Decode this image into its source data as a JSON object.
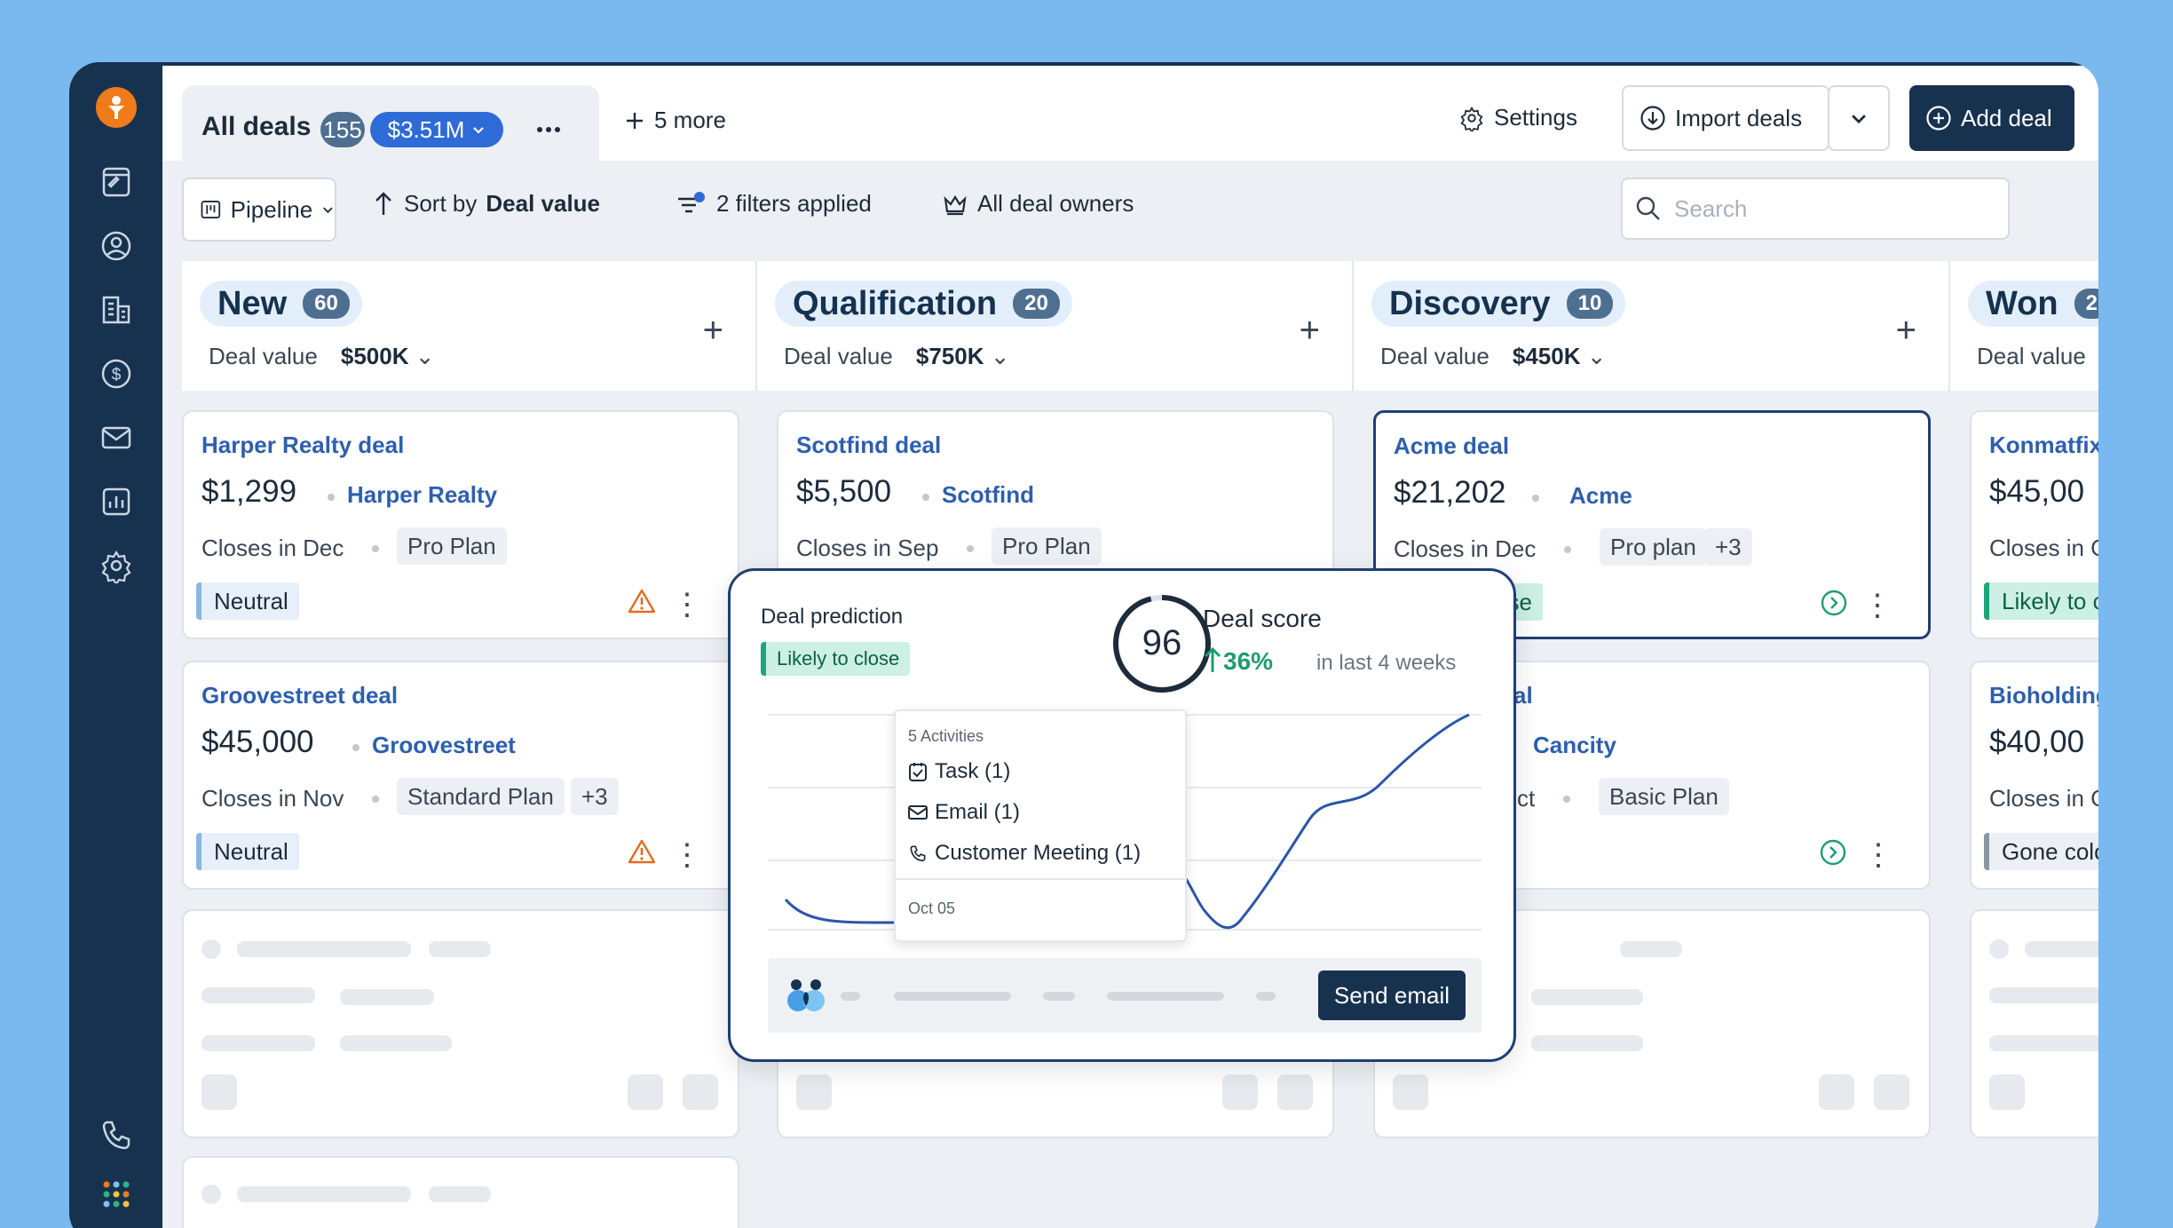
{
  "header": {
    "tab_title": "All deals",
    "count": "155",
    "value": "$3.51M",
    "more": "5 more",
    "settings": "Settings",
    "import": "Import deals",
    "add": "Add deal"
  },
  "toolbar": {
    "view": "Pipeline",
    "sort_prefix": "Sort by",
    "sort_field": "Deal value",
    "filters": "2 filters applied",
    "owners": "All deal owners",
    "search_placeholder": "Search"
  },
  "columns": [
    {
      "name": "New",
      "count": "60",
      "value_label": "Deal value",
      "value": "$500K"
    },
    {
      "name": "Qualification",
      "count": "20",
      "value_label": "Deal value",
      "value": "$750K"
    },
    {
      "name": "Discovery",
      "count": "10",
      "value_label": "Deal value",
      "value": "$450K"
    },
    {
      "name": "Won",
      "count": "2",
      "value_label": "Deal value",
      "value": ""
    }
  ],
  "cards": {
    "harper": {
      "name": "Harper Realty deal",
      "amount": "$1,299",
      "org": "Harper Realty",
      "close": "Closes in Dec",
      "plan": "Pro Plan",
      "status": "Neutral"
    },
    "groove": {
      "name": "Groovestreet deal",
      "amount": "$45,000",
      "org": "Groovestreet",
      "close": "Closes in Nov",
      "plan": "Standard Plan",
      "extra": "+3",
      "status": "Neutral"
    },
    "scot": {
      "name": "Scotfind deal",
      "amount": "$5,500",
      "org": "Scotfind",
      "close": "Closes in Sep",
      "plan": "Pro Plan"
    },
    "acme": {
      "name": "Acme deal",
      "amount": "$21,202",
      "org": "Acme",
      "close": "Closes in Dec",
      "plan": "Pro plan",
      "extra": "+3",
      "status": "ose"
    },
    "cancity": {
      "name": "al",
      "org": "Cancity",
      "close": "ct",
      "plan": "Basic Plan"
    },
    "konmatfix": {
      "name": "Konmatfix",
      "amount": "$45,00",
      "close": "Closes in C",
      "status": "Likely to c"
    },
    "bioholding": {
      "name": "Bioholding",
      "amount": "$40,00",
      "close": "Closes in C",
      "status": "Gone colo"
    }
  },
  "popup": {
    "prediction_label": "Deal prediction",
    "prediction": "Likely to close",
    "score": "96",
    "score_label": "Deal score",
    "change": "36%",
    "period": "in last 4 weeks",
    "tooltip": {
      "heading": "5 Activities",
      "task": "Task (1)",
      "email": "Email (1)",
      "meeting": "Customer Meeting (1)",
      "date": "Oct 05"
    },
    "send": "Send email"
  },
  "colors": {
    "brand": "#17324f",
    "accent": "#2e6bd6",
    "success": "#1e9b72",
    "warning": "#e36c1c",
    "background": "#79b9ef"
  },
  "icons": [
    "crm-logo-icon",
    "notes-icon",
    "contacts-icon",
    "companies-icon",
    "deals-dollar-icon",
    "mail-icon",
    "reports-icon",
    "settings-gear-icon",
    "phone-icon",
    "apps-grid-icon"
  ]
}
